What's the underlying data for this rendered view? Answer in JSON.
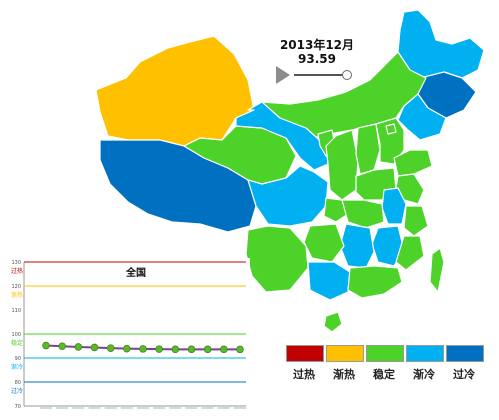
{
  "timeline": {
    "date": "2013年12月",
    "value": "93.59"
  },
  "colors": {
    "overheat": "#c00000",
    "warming": "#ffc000",
    "stable": "#4dd22a",
    "cooling": "#00b0f0",
    "overcool": "#0070c0",
    "border": "#ffffff",
    "water": "#ffffff"
  },
  "legend": [
    {
      "label": "过热",
      "color": "#c00000"
    },
    {
      "label": "渐热",
      "color": "#ffc000"
    },
    {
      "label": "稳定",
      "color": "#4dd22a"
    },
    {
      "label": "渐冷",
      "color": "#00b0f0"
    },
    {
      "label": "过冷",
      "color": "#0070c0"
    }
  ],
  "chart_data": {
    "type": "line",
    "title": "全国",
    "ylim": [
      70,
      130
    ],
    "y_ticks": [
      70,
      80,
      90,
      100,
      110,
      120,
      130
    ],
    "bands": [
      {
        "label": "过热",
        "value": 130,
        "color": "#c00000"
      },
      {
        "label": "渐热",
        "value": 120,
        "color": "#ffc000"
      },
      {
        "label": "稳定",
        "value": 100,
        "color": "#4dd22a"
      },
      {
        "label": "渐冷",
        "value": 90,
        "color": "#00b0f0"
      },
      {
        "label": "过冷",
        "value": 80,
        "color": "#0070c0"
      }
    ],
    "series": [
      {
        "values": [
          95.2,
          94.9,
          94.6,
          94.4,
          94.1,
          93.9,
          93.8,
          93.7,
          93.6,
          93.6,
          93.6,
          93.6,
          93.59
        ],
        "color": "#7b3fa0",
        "marker_color": "#5cb82a"
      }
    ]
  }
}
